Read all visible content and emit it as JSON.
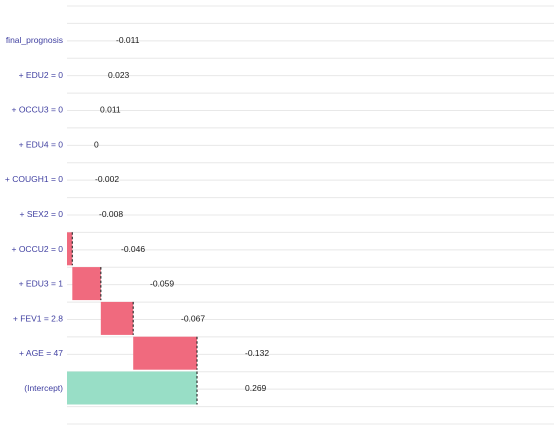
{
  "chart_data": {
    "type": "bar",
    "subtype": "waterfall-breakdown",
    "title": "",
    "xlabel": "",
    "ylabel": "",
    "grid": true,
    "colors": {
      "negative": "#f06a7e",
      "intercept": "#98dec6",
      "grid": "#e8e8e8",
      "connector": "#333333",
      "label": "#3f3fa0"
    },
    "series": [
      {
        "label": "(Intercept)",
        "value_label": "0.269",
        "contribution": 0.269,
        "start": 0,
        "end": 0.269,
        "kind": "intercept"
      },
      {
        "label": "+ AGE = 47",
        "value_label": "-0.132",
        "contribution": -0.132,
        "start": 0.269,
        "end": 0.137,
        "kind": "negative"
      },
      {
        "label": "+ FEV1 = 2.8",
        "value_label": "-0.067",
        "contribution": -0.067,
        "start": 0.137,
        "end": 0.07,
        "kind": "negative"
      },
      {
        "label": "+ EDU3 = 1",
        "value_label": "-0.059",
        "contribution": -0.059,
        "start": 0.07,
        "end": 0.011,
        "kind": "negative"
      },
      {
        "label": "+ OCCU2 = 0",
        "value_label": "-0.046",
        "contribution": -0.046,
        "start": 0.011,
        "end": 0.0,
        "kind": "negative"
      },
      {
        "label": "+ SEX2 = 0",
        "value_label": "-0.008",
        "contribution": -0.008,
        "start": 0.0,
        "end": 0.0,
        "kind": "negative"
      },
      {
        "label": "+ COUGH1 = 0",
        "value_label": "-0.002",
        "contribution": -0.002,
        "start": 0.0,
        "end": 0.0,
        "kind": "negative"
      },
      {
        "label": "+ EDU4 = 0",
        "value_label": "0",
        "contribution": 0,
        "start": 0.0,
        "end": 0.0,
        "kind": "zero"
      },
      {
        "label": "+ OCCU3 = 0",
        "value_label": "0.011",
        "contribution": 0.011,
        "start": 0.0,
        "end": 0.0,
        "kind": "positive"
      },
      {
        "label": "+ EDU2 = 0",
        "value_label": "0.023",
        "contribution": 0.023,
        "start": 0.0,
        "end": 0.0,
        "kind": "positive"
      },
      {
        "label": "final_prognosis",
        "value_label": "-0.011",
        "contribution": -0.011,
        "start": 0.0,
        "end": 0.0,
        "kind": "final"
      }
    ],
    "xlim": [
      0,
      0.269
    ]
  }
}
